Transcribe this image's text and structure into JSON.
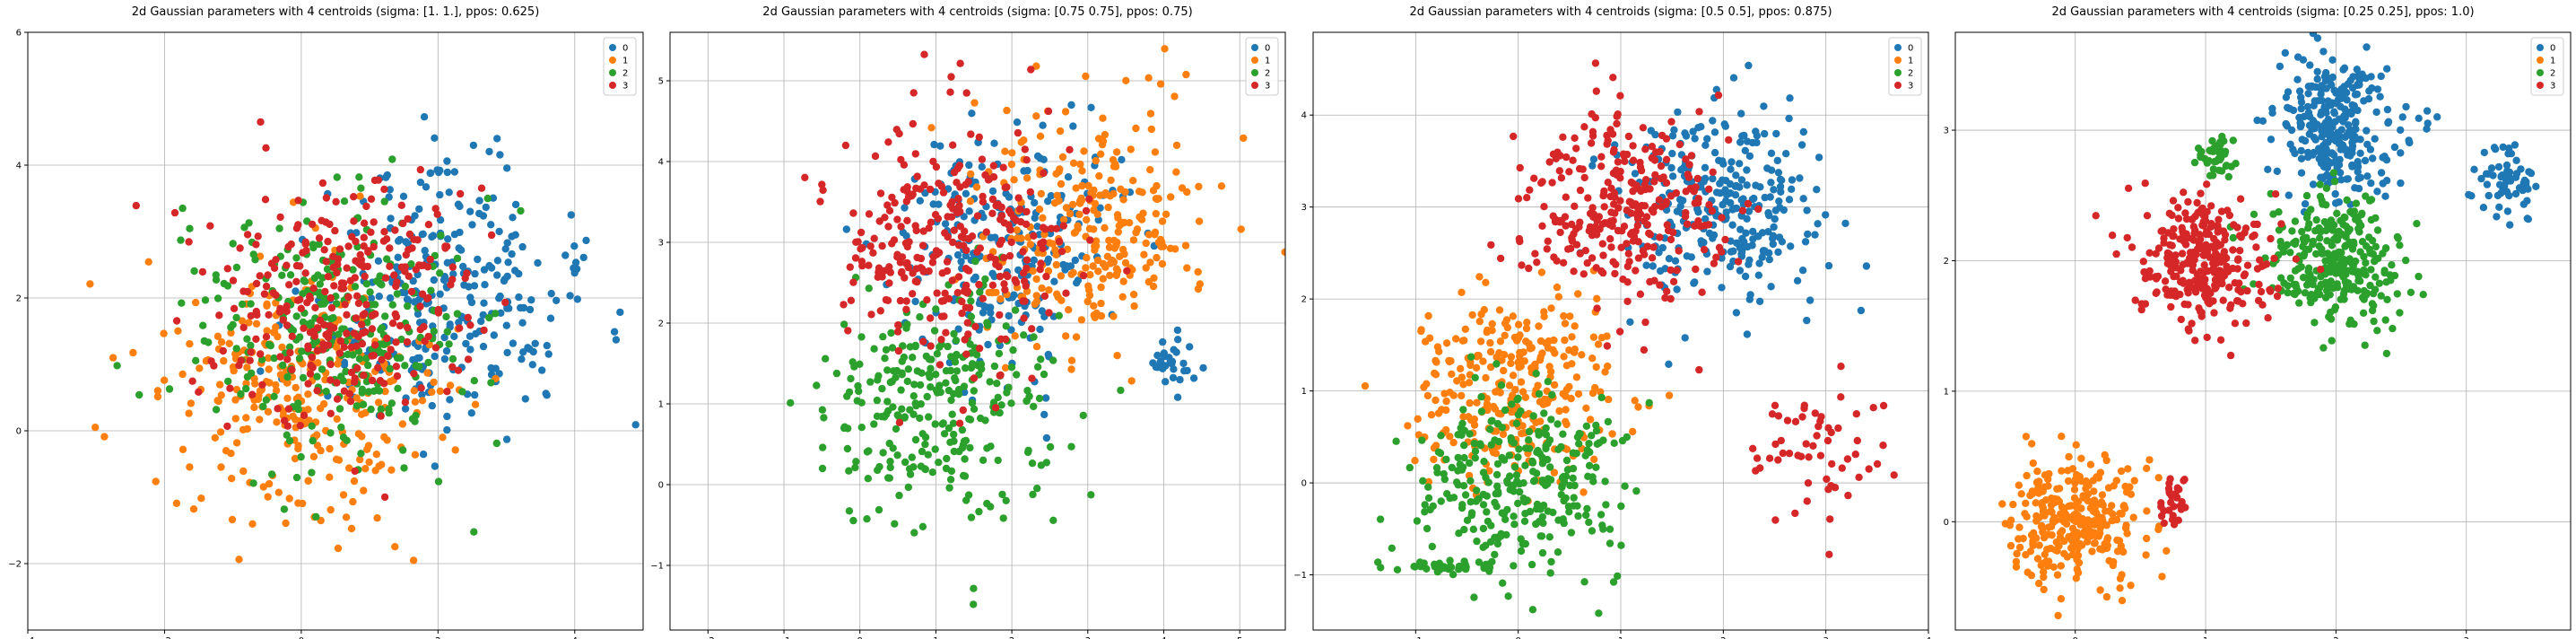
{
  "colors": {
    "0": "#1f77b4",
    "1": "#ff7f0e",
    "2": "#2ca02c",
    "3": "#d62728"
  },
  "chart_data": [
    {
      "type": "scatter",
      "title": "2d Gaussian parameters with 4 centroids (sigma: [1. 1.], ppos: 0.625)",
      "xlim": [
        -4,
        5
      ],
      "ylim": [
        -3,
        6
      ],
      "xticks": [
        -4,
        -2,
        0,
        2,
        4
      ],
      "yticks": [
        -2,
        0,
        2,
        4,
        6
      ],
      "legend": "top-right",
      "grid": true,
      "series": [
        {
          "name": "0",
          "clusters": [
            {
              "cx": 2.0,
              "cy": 2.0,
              "sx": 1.0,
              "sy": 1.0,
              "n": 300
            }
          ]
        },
        {
          "name": "1",
          "clusters": [
            {
              "cx": 0.0,
              "cy": 0.5,
              "sx": 1.0,
              "sy": 1.0,
              "n": 300
            }
          ]
        },
        {
          "name": "2",
          "clusters": [
            {
              "cx": 0.5,
              "cy": 1.5,
              "sx": 1.0,
              "sy": 1.0,
              "n": 300
            }
          ]
        },
        {
          "name": "3",
          "clusters": [
            {
              "cx": 0.5,
              "cy": 2.0,
              "sx": 1.0,
              "sy": 1.0,
              "n": 300
            }
          ]
        }
      ]
    },
    {
      "type": "scatter",
      "title": "2d Gaussian parameters with 4 centroids (sigma: [0.75 0.75], ppos: 0.75)",
      "xlim": [
        -2.5,
        5.6
      ],
      "ylim": [
        -1.8,
        5.6
      ],
      "xticks": [
        -2,
        -1,
        0,
        1,
        2,
        3,
        4,
        5
      ],
      "yticks": [
        -1,
        0,
        1,
        2,
        3,
        4,
        5
      ],
      "legend": "top-right",
      "grid": true,
      "series": [
        {
          "name": "0",
          "clusters": [
            {
              "cx": 2.0,
              "cy": 3.0,
              "sx": 0.75,
              "sy": 0.75,
              "n": 230
            },
            {
              "cx": 4.1,
              "cy": 1.5,
              "sx": 0.15,
              "sy": 0.12,
              "n": 30
            }
          ]
        },
        {
          "name": "1",
          "clusters": [
            {
              "cx": 3.0,
              "cy": 3.2,
              "sx": 0.75,
              "sy": 0.75,
              "n": 280
            }
          ]
        },
        {
          "name": "2",
          "clusters": [
            {
              "cx": 1.0,
              "cy": 1.0,
              "sx": 0.75,
              "sy": 0.75,
              "n": 300
            }
          ]
        },
        {
          "name": "3",
          "clusters": [
            {
              "cx": 1.2,
              "cy": 3.0,
              "sx": 0.75,
              "sy": 0.75,
              "n": 300
            }
          ]
        }
      ]
    },
    {
      "type": "scatter",
      "title": "2d Gaussian parameters with 4 centroids (sigma: [0.5 0.5], ppos: 0.875)",
      "xlim": [
        -2.0,
        4.0
      ],
      "ylim": [
        -1.6,
        4.9
      ],
      "xticks": [
        -1,
        0,
        1,
        2,
        3,
        4
      ],
      "yticks": [
        -1,
        0,
        1,
        2,
        3,
        4
      ],
      "legend": "top-right",
      "grid": true,
      "series": [
        {
          "name": "0",
          "clusters": [
            {
              "cx": 2.0,
              "cy": 3.0,
              "sx": 0.5,
              "sy": 0.5,
              "n": 300
            }
          ]
        },
        {
          "name": "1",
          "clusters": [
            {
              "cx": 0.0,
              "cy": 1.0,
              "sx": 0.5,
              "sy": 0.5,
              "n": 300
            }
          ]
        },
        {
          "name": "2",
          "clusters": [
            {
              "cx": 0.0,
              "cy": 0.0,
              "sx": 0.5,
              "sy": 0.5,
              "n": 300
            },
            {
              "cx": -0.6,
              "cy": -0.9,
              "sx": 0.3,
              "sy": 0.03,
              "n": 40
            }
          ]
        },
        {
          "name": "3",
          "clusters": [
            {
              "cx": 1.0,
              "cy": 3.0,
              "sx": 0.5,
              "sy": 0.5,
              "n": 300
            },
            {
              "cx": 2.9,
              "cy": 0.3,
              "sx": 0.35,
              "sy": 0.4,
              "n": 60
            }
          ]
        }
      ]
    },
    {
      "type": "scatter",
      "title": "2d Gaussian parameters with 4 centroids (sigma: [0.25 0.25], ppos: 1.0)",
      "xlim": [
        -0.92,
        3.8
      ],
      "ylim": [
        -0.83,
        3.75
      ],
      "xticks": [
        0,
        1,
        2,
        3
      ],
      "yticks": [
        0,
        1,
        2,
        3
      ],
      "legend": "top-right",
      "grid": true,
      "series": [
        {
          "name": "0",
          "clusters": [
            {
              "cx": 2.0,
              "cy": 3.0,
              "sx": 0.25,
              "sy": 0.25,
              "n": 300
            },
            {
              "cx": 3.3,
              "cy": 2.6,
              "sx": 0.12,
              "sy": 0.15,
              "n": 60
            }
          ]
        },
        {
          "name": "1",
          "clusters": [
            {
              "cx": 0.0,
              "cy": 0.0,
              "sx": 0.25,
              "sy": 0.25,
              "n": 300
            }
          ]
        },
        {
          "name": "2",
          "clusters": [
            {
              "cx": 2.0,
              "cy": 2.0,
              "sx": 0.25,
              "sy": 0.25,
              "n": 300
            },
            {
              "cx": 1.1,
              "cy": 2.8,
              "sx": 0.07,
              "sy": 0.1,
              "n": 40
            }
          ]
        },
        {
          "name": "3",
          "clusters": [
            {
              "cx": 1.0,
              "cy": 2.0,
              "sx": 0.25,
              "sy": 0.25,
              "n": 300
            },
            {
              "cx": 0.75,
              "cy": 0.15,
              "sx": 0.06,
              "sy": 0.08,
              "n": 30
            }
          ]
        }
      ]
    }
  ]
}
